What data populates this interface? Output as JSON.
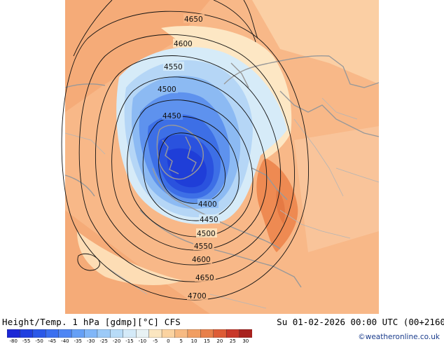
{
  "product": {
    "title": "Height/Temp. 1 hPa [gdmp][°C] CFS",
    "valid_time": "Su 01-02-2026 00:00 UTC (00+2160",
    "credit": "©weatheronline.co.uk"
  },
  "contours": [
    {
      "label": "4650"
    },
    {
      "label": "4600"
    },
    {
      "label": "4550"
    },
    {
      "label": "4500"
    },
    {
      "label": "4450"
    },
    {
      "label": "4400"
    },
    {
      "label": "4450"
    },
    {
      "label": "4500"
    },
    {
      "label": "4550"
    },
    {
      "label": "4600"
    },
    {
      "label": "4650"
    },
    {
      "label": "4700"
    }
  ],
  "colorbar": {
    "ticks": [
      "-80",
      "-55",
      "-50",
      "-45",
      "-40",
      "-35",
      "-30",
      "-25",
      "-20",
      "-15",
      "-10",
      "-5",
      "0",
      "5",
      "10",
      "15",
      "20",
      "25",
      "30"
    ],
    "colors": [
      "#1b27d6",
      "#2040e0",
      "#2a58e8",
      "#3a6ff0",
      "#4f86f4",
      "#66a0f6",
      "#80b6f8",
      "#9ccaf8",
      "#b8dcf8",
      "#d4eaf8",
      "#e8f2f4",
      "#fbe6c0",
      "#fbd3a0",
      "#f7ba82",
      "#f19e62",
      "#e8804a",
      "#dd5c36",
      "#c8382a",
      "#a8221e"
    ]
  }
}
